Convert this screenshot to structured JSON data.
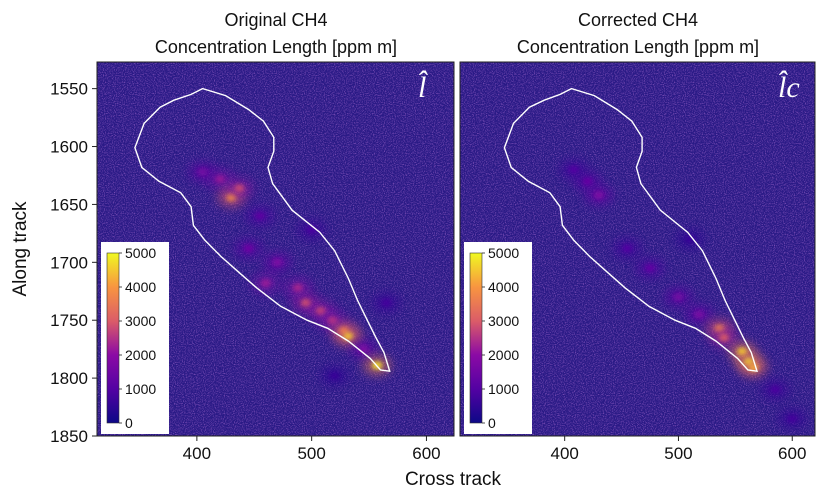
{
  "chart_data": [
    {
      "type": "heatmap",
      "title_lines": [
        "Original CH4",
        "Concentration Length [ppm m]"
      ],
      "panel_symbol": "l̂",
      "xlabel": "Cross track",
      "ylabel": "Along track",
      "xlim": [
        313,
        624
      ],
      "ylim": [
        1850,
        1527
      ],
      "xticks": [
        400,
        500,
        600
      ],
      "yticks": [
        1550,
        1600,
        1650,
        1700,
        1750,
        1800,
        1850
      ],
      "colormap": "plasma",
      "colorbar": {
        "range": [
          0,
          5000
        ],
        "ticks": [
          0,
          1000,
          2000,
          3000,
          4000,
          5000
        ],
        "placement": "lower-left"
      },
      "plume_outline": [
        [
          380,
          1560
        ],
        [
          395,
          1555
        ],
        [
          405,
          1550
        ],
        [
          425,
          1556
        ],
        [
          445,
          1568
        ],
        [
          458,
          1578
        ],
        [
          467,
          1592
        ],
        [
          467,
          1604
        ],
        [
          462,
          1618
        ],
        [
          466,
          1632
        ],
        [
          483,
          1655
        ],
        [
          507,
          1674
        ],
        [
          520,
          1690
        ],
        [
          532,
          1714
        ],
        [
          540,
          1733
        ],
        [
          549,
          1751
        ],
        [
          556,
          1765
        ],
        [
          563,
          1778
        ],
        [
          568,
          1794
        ],
        [
          560,
          1793
        ],
        [
          551,
          1783
        ],
        [
          532,
          1768
        ],
        [
          514,
          1757
        ],
        [
          496,
          1750
        ],
        [
          473,
          1738
        ],
        [
          452,
          1722
        ],
        [
          437,
          1709
        ],
        [
          421,
          1695
        ],
        [
          407,
          1681
        ],
        [
          397,
          1668
        ],
        [
          395,
          1652
        ],
        [
          386,
          1640
        ],
        [
          367,
          1630
        ],
        [
          352,
          1618
        ],
        [
          346,
          1601
        ],
        [
          354,
          1580
        ],
        [
          368,
          1566
        ],
        [
          380,
          1560
        ]
      ],
      "hotspots": [
        {
          "x": 420,
          "y": 1628,
          "value": 2200
        },
        {
          "x": 430,
          "y": 1644,
          "value": 4000
        },
        {
          "x": 437,
          "y": 1636,
          "value": 2800
        },
        {
          "x": 405,
          "y": 1622,
          "value": 1600
        },
        {
          "x": 455,
          "y": 1660,
          "value": 1200
        },
        {
          "x": 445,
          "y": 1688,
          "value": 1500
        },
        {
          "x": 470,
          "y": 1700,
          "value": 1800
        },
        {
          "x": 460,
          "y": 1718,
          "value": 2200
        },
        {
          "x": 488,
          "y": 1722,
          "value": 2400
        },
        {
          "x": 495,
          "y": 1735,
          "value": 2900
        },
        {
          "x": 508,
          "y": 1742,
          "value": 2800
        },
        {
          "x": 518,
          "y": 1750,
          "value": 2500
        },
        {
          "x": 528,
          "y": 1759,
          "value": 3600
        },
        {
          "x": 532,
          "y": 1764,
          "value": 4500
        },
        {
          "x": 545,
          "y": 1775,
          "value": 1800
        },
        {
          "x": 557,
          "y": 1789,
          "value": 4800
        },
        {
          "x": 565,
          "y": 1735,
          "value": 800
        },
        {
          "x": 500,
          "y": 1672,
          "value": 900
        },
        {
          "x": 520,
          "y": 1798,
          "value": 600
        }
      ]
    },
    {
      "type": "heatmap",
      "title_lines": [
        "Corrected CH4",
        "Concentration Length [ppm m]"
      ],
      "panel_symbol": "l̂c",
      "xlabel": "Cross track",
      "ylabel": "Along track",
      "xlim": [
        308,
        620
      ],
      "ylim": [
        1850,
        1527
      ],
      "xticks": [
        400,
        500,
        600
      ],
      "yticks": [
        1550,
        1600,
        1650,
        1700,
        1750,
        1800,
        1850
      ],
      "colormap": "plasma",
      "colorbar": {
        "range": [
          0,
          5000
        ],
        "ticks": [
          0,
          1000,
          2000,
          3000,
          4000,
          5000
        ],
        "placement": "lower-left"
      },
      "plume_outline": [
        [
          382,
          1560
        ],
        [
          396,
          1555
        ],
        [
          406,
          1550
        ],
        [
          426,
          1556
        ],
        [
          446,
          1568
        ],
        [
          459,
          1578
        ],
        [
          468,
          1592
        ],
        [
          468,
          1604
        ],
        [
          463,
          1618
        ],
        [
          467,
          1632
        ],
        [
          484,
          1655
        ],
        [
          508,
          1674
        ],
        [
          521,
          1690
        ],
        [
          533,
          1714
        ],
        [
          541,
          1733
        ],
        [
          550,
          1751
        ],
        [
          557,
          1765
        ],
        [
          564,
          1778
        ],
        [
          569,
          1794
        ],
        [
          561,
          1793
        ],
        [
          552,
          1783
        ],
        [
          533,
          1768
        ],
        [
          515,
          1757
        ],
        [
          497,
          1750
        ],
        [
          474,
          1738
        ],
        [
          453,
          1722
        ],
        [
          438,
          1709
        ],
        [
          422,
          1695
        ],
        [
          408,
          1681
        ],
        [
          398,
          1668
        ],
        [
          396,
          1652
        ],
        [
          387,
          1640
        ],
        [
          368,
          1630
        ],
        [
          353,
          1618
        ],
        [
          347,
          1601
        ],
        [
          355,
          1580
        ],
        [
          369,
          1566
        ],
        [
          382,
          1560
        ]
      ],
      "hotspots": [
        {
          "x": 420,
          "y": 1630,
          "value": 1400
        },
        {
          "x": 430,
          "y": 1642,
          "value": 1800
        },
        {
          "x": 408,
          "y": 1620,
          "value": 1000
        },
        {
          "x": 455,
          "y": 1688,
          "value": 1000
        },
        {
          "x": 475,
          "y": 1705,
          "value": 1300
        },
        {
          "x": 500,
          "y": 1730,
          "value": 1600
        },
        {
          "x": 518,
          "y": 1745,
          "value": 1700
        },
        {
          "x": 536,
          "y": 1757,
          "value": 3800
        },
        {
          "x": 540,
          "y": 1765,
          "value": 3000
        },
        {
          "x": 556,
          "y": 1777,
          "value": 4600
        },
        {
          "x": 562,
          "y": 1786,
          "value": 4900
        },
        {
          "x": 566,
          "y": 1791,
          "value": 4200
        },
        {
          "x": 585,
          "y": 1810,
          "value": 900
        },
        {
          "x": 600,
          "y": 1835,
          "value": 800
        },
        {
          "x": 510,
          "y": 1680,
          "value": 600
        }
      ]
    }
  ]
}
